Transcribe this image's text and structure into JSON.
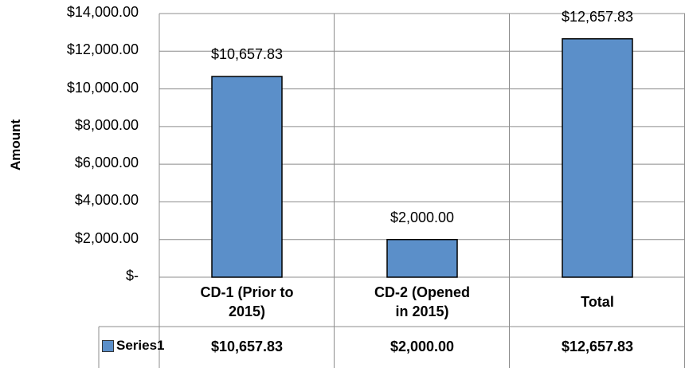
{
  "chart_data": {
    "type": "bar",
    "y_label": "Amount",
    "categories": [
      "CD-1 (Prior to 2015)",
      "CD-2 (Opened in 2015)",
      "Total"
    ],
    "series": [
      {
        "name": "Series1",
        "color": "#5b8fc9",
        "values": [
          10657.83,
          2000,
          12657.83
        ],
        "value_labels": [
          "$10,657.83",
          "$2,000.00",
          "$12,657.83"
        ]
      }
    ],
    "ylim": [
      0,
      14000
    ],
    "yticks": [
      {
        "value": 0,
        "label": "$-"
      },
      {
        "value": 2000,
        "label": "$2,000.00"
      },
      {
        "value": 4000,
        "label": "$4,000.00"
      },
      {
        "value": 6000,
        "label": "$6,000.00"
      },
      {
        "value": 8000,
        "label": "$8,000.00"
      },
      {
        "value": 10000,
        "label": "$10,000.00"
      },
      {
        "value": 12000,
        "label": "$12,000.00"
      },
      {
        "value": 14000,
        "label": "$14,000.00"
      }
    ],
    "grid": true
  }
}
